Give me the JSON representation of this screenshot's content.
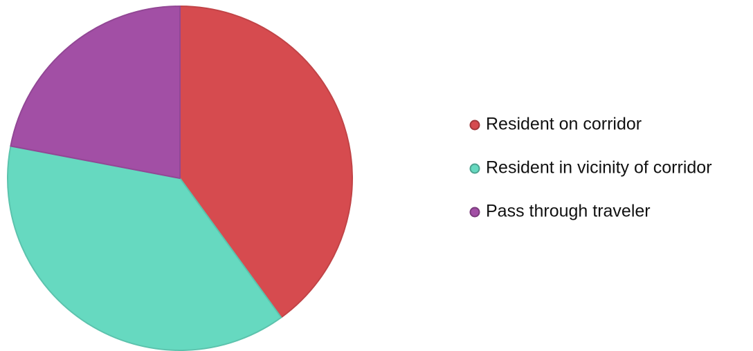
{
  "chart_data": {
    "type": "pie",
    "categories": [
      "Resident on corridor",
      "Resident in vicinity of corridor",
      "Pass through traveler"
    ],
    "values": [
      40,
      38,
      22
    ],
    "colors": [
      "#d64b4f",
      "#66d9c0",
      "#a24fa5"
    ],
    "legend": "right"
  }
}
